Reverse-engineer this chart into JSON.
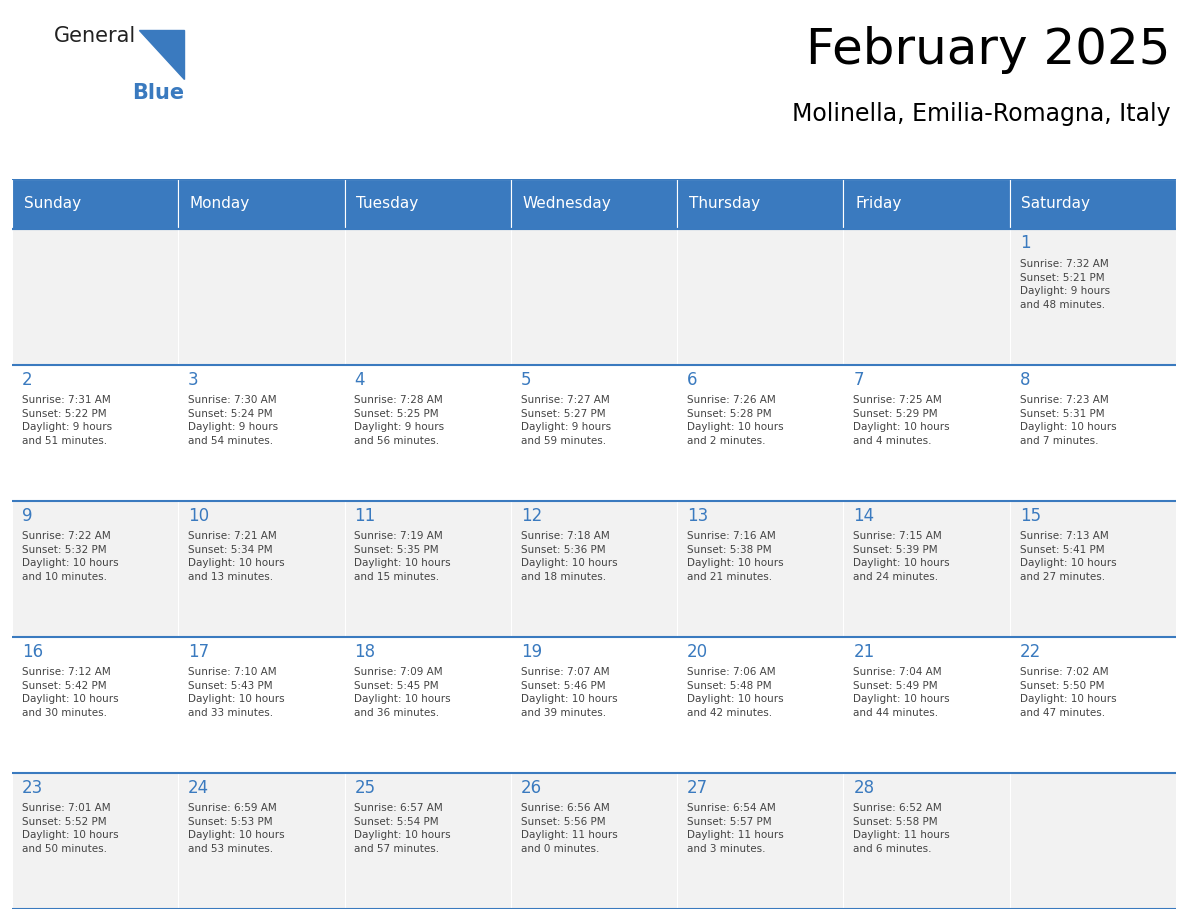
{
  "title": "February 2025",
  "subtitle": "Molinella, Emilia-Romagna, Italy",
  "header_color": "#3a7abf",
  "header_text_color": "#ffffff",
  "cell_bg_even": "#f2f2f2",
  "cell_bg_odd": "#ffffff",
  "day_number_color": "#3a7abf",
  "text_color": "#444444",
  "line_color": "#3a7abf",
  "days_of_week": [
    "Sunday",
    "Monday",
    "Tuesday",
    "Wednesday",
    "Thursday",
    "Friday",
    "Saturday"
  ],
  "weeks": [
    [
      {
        "day": null,
        "info": ""
      },
      {
        "day": null,
        "info": ""
      },
      {
        "day": null,
        "info": ""
      },
      {
        "day": null,
        "info": ""
      },
      {
        "day": null,
        "info": ""
      },
      {
        "day": null,
        "info": ""
      },
      {
        "day": 1,
        "info": "Sunrise: 7:32 AM\nSunset: 5:21 PM\nDaylight: 9 hours\nand 48 minutes."
      }
    ],
    [
      {
        "day": 2,
        "info": "Sunrise: 7:31 AM\nSunset: 5:22 PM\nDaylight: 9 hours\nand 51 minutes."
      },
      {
        "day": 3,
        "info": "Sunrise: 7:30 AM\nSunset: 5:24 PM\nDaylight: 9 hours\nand 54 minutes."
      },
      {
        "day": 4,
        "info": "Sunrise: 7:28 AM\nSunset: 5:25 PM\nDaylight: 9 hours\nand 56 minutes."
      },
      {
        "day": 5,
        "info": "Sunrise: 7:27 AM\nSunset: 5:27 PM\nDaylight: 9 hours\nand 59 minutes."
      },
      {
        "day": 6,
        "info": "Sunrise: 7:26 AM\nSunset: 5:28 PM\nDaylight: 10 hours\nand 2 minutes."
      },
      {
        "day": 7,
        "info": "Sunrise: 7:25 AM\nSunset: 5:29 PM\nDaylight: 10 hours\nand 4 minutes."
      },
      {
        "day": 8,
        "info": "Sunrise: 7:23 AM\nSunset: 5:31 PM\nDaylight: 10 hours\nand 7 minutes."
      }
    ],
    [
      {
        "day": 9,
        "info": "Sunrise: 7:22 AM\nSunset: 5:32 PM\nDaylight: 10 hours\nand 10 minutes."
      },
      {
        "day": 10,
        "info": "Sunrise: 7:21 AM\nSunset: 5:34 PM\nDaylight: 10 hours\nand 13 minutes."
      },
      {
        "day": 11,
        "info": "Sunrise: 7:19 AM\nSunset: 5:35 PM\nDaylight: 10 hours\nand 15 minutes."
      },
      {
        "day": 12,
        "info": "Sunrise: 7:18 AM\nSunset: 5:36 PM\nDaylight: 10 hours\nand 18 minutes."
      },
      {
        "day": 13,
        "info": "Sunrise: 7:16 AM\nSunset: 5:38 PM\nDaylight: 10 hours\nand 21 minutes."
      },
      {
        "day": 14,
        "info": "Sunrise: 7:15 AM\nSunset: 5:39 PM\nDaylight: 10 hours\nand 24 minutes."
      },
      {
        "day": 15,
        "info": "Sunrise: 7:13 AM\nSunset: 5:41 PM\nDaylight: 10 hours\nand 27 minutes."
      }
    ],
    [
      {
        "day": 16,
        "info": "Sunrise: 7:12 AM\nSunset: 5:42 PM\nDaylight: 10 hours\nand 30 minutes."
      },
      {
        "day": 17,
        "info": "Sunrise: 7:10 AM\nSunset: 5:43 PM\nDaylight: 10 hours\nand 33 minutes."
      },
      {
        "day": 18,
        "info": "Sunrise: 7:09 AM\nSunset: 5:45 PM\nDaylight: 10 hours\nand 36 minutes."
      },
      {
        "day": 19,
        "info": "Sunrise: 7:07 AM\nSunset: 5:46 PM\nDaylight: 10 hours\nand 39 minutes."
      },
      {
        "day": 20,
        "info": "Sunrise: 7:06 AM\nSunset: 5:48 PM\nDaylight: 10 hours\nand 42 minutes."
      },
      {
        "day": 21,
        "info": "Sunrise: 7:04 AM\nSunset: 5:49 PM\nDaylight: 10 hours\nand 44 minutes."
      },
      {
        "day": 22,
        "info": "Sunrise: 7:02 AM\nSunset: 5:50 PM\nDaylight: 10 hours\nand 47 minutes."
      }
    ],
    [
      {
        "day": 23,
        "info": "Sunrise: 7:01 AM\nSunset: 5:52 PM\nDaylight: 10 hours\nand 50 minutes."
      },
      {
        "day": 24,
        "info": "Sunrise: 6:59 AM\nSunset: 5:53 PM\nDaylight: 10 hours\nand 53 minutes."
      },
      {
        "day": 25,
        "info": "Sunrise: 6:57 AM\nSunset: 5:54 PM\nDaylight: 10 hours\nand 57 minutes."
      },
      {
        "day": 26,
        "info": "Sunrise: 6:56 AM\nSunset: 5:56 PM\nDaylight: 11 hours\nand 0 minutes."
      },
      {
        "day": 27,
        "info": "Sunrise: 6:54 AM\nSunset: 5:57 PM\nDaylight: 11 hours\nand 3 minutes."
      },
      {
        "day": 28,
        "info": "Sunrise: 6:52 AM\nSunset: 5:58 PM\nDaylight: 11 hours\nand 6 minutes."
      },
      {
        "day": null,
        "info": ""
      }
    ]
  ],
  "logo_general_color": "#222222",
  "logo_blue_color": "#3a7abf"
}
